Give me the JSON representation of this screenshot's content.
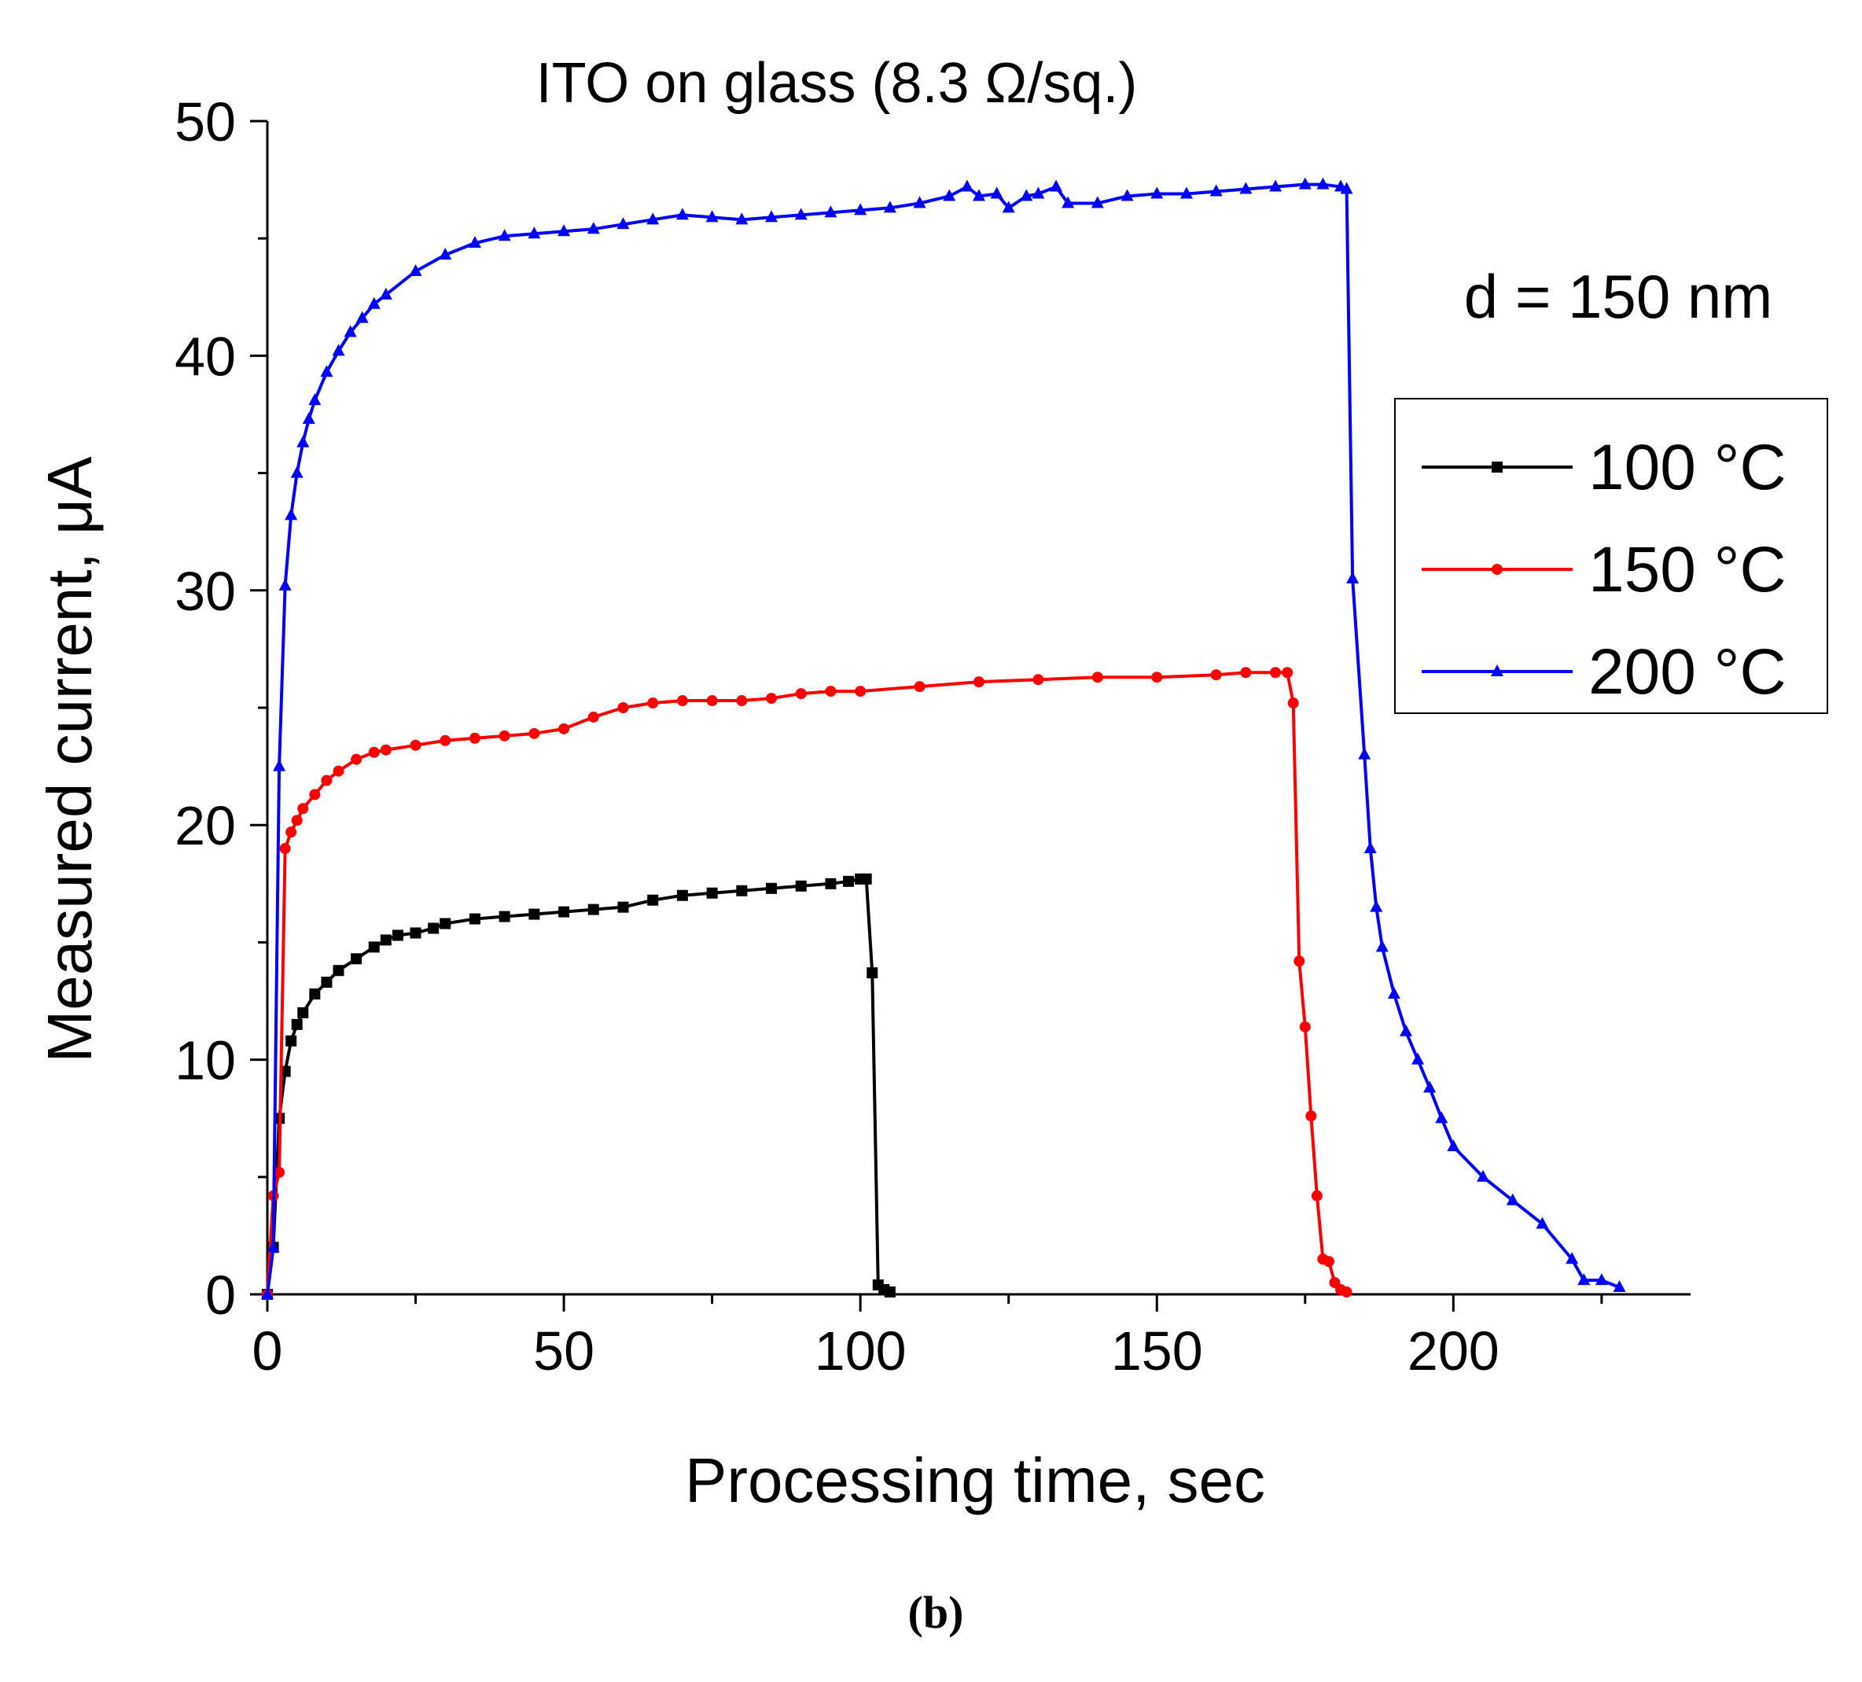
{
  "chart_data": {
    "type": "line",
    "title": "ITO on glass (8.3 Ω/sq.)",
    "annotation": "d = 150 nm",
    "panel_label": "(b)",
    "xlabel": "Processing time, sec",
    "ylabel": "Measured current, μA",
    "xlim": [
      0,
      240
    ],
    "ylim": [
      0,
      50
    ],
    "xticks": [
      0,
      50,
      100,
      150,
      200
    ],
    "yticks": [
      0,
      10,
      20,
      30,
      40,
      50
    ],
    "xtick_labels": [
      "0",
      "50",
      "100",
      "150",
      "200"
    ],
    "ytick_labels": [
      "0",
      "10",
      "20",
      "30",
      "40",
      "50"
    ],
    "legend_position": "right",
    "series": [
      {
        "name": "100 °C",
        "color": "#000000",
        "marker": "square",
        "x": [
          0,
          1,
          2,
          3,
          4,
          5,
          6,
          8,
          10,
          12,
          15,
          18,
          20,
          22,
          25,
          28,
          30,
          35,
          40,
          45,
          50,
          55,
          60,
          65,
          70,
          75,
          80,
          85,
          90,
          95,
          98,
          100,
          101,
          102,
          103,
          104,
          105
        ],
        "y": [
          0,
          2,
          7.5,
          9.5,
          10.8,
          11.5,
          12,
          12.8,
          13.3,
          13.8,
          14.3,
          14.8,
          15.1,
          15.3,
          15.4,
          15.6,
          15.8,
          16.0,
          16.1,
          16.2,
          16.3,
          16.4,
          16.5,
          16.8,
          17.0,
          17.1,
          17.2,
          17.3,
          17.4,
          17.5,
          17.6,
          17.7,
          17.7,
          13.7,
          0.4,
          0.2,
          0.1
        ]
      },
      {
        "name": "150 °C",
        "color": "#ff0000",
        "marker": "circle",
        "x": [
          0,
          1,
          2,
          3,
          4,
          5,
          6,
          8,
          10,
          12,
          15,
          18,
          20,
          25,
          30,
          35,
          40,
          45,
          50,
          55,
          60,
          65,
          70,
          75,
          80,
          85,
          90,
          95,
          100,
          110,
          120,
          130,
          140,
          150,
          160,
          165,
          170,
          172,
          173,
          174,
          175,
          176,
          177,
          178,
          179,
          180,
          181,
          182
        ],
        "y": [
          0,
          4.2,
          5.2,
          19,
          19.7,
          20.2,
          20.7,
          21.3,
          21.9,
          22.3,
          22.8,
          23.1,
          23.2,
          23.4,
          23.6,
          23.7,
          23.8,
          23.9,
          24.1,
          24.6,
          25.0,
          25.2,
          25.3,
          25.3,
          25.3,
          25.4,
          25.6,
          25.7,
          25.7,
          25.9,
          26.1,
          26.2,
          26.3,
          26.3,
          26.4,
          26.5,
          26.5,
          26.5,
          25.2,
          14.2,
          11.4,
          7.6,
          4.2,
          1.5,
          1.4,
          0.5,
          0.2,
          0.1
        ]
      },
      {
        "name": "200 °C",
        "color": "#0000ff",
        "marker": "triangle",
        "x": [
          0,
          1,
          2,
          3,
          4,
          5,
          6,
          7,
          8,
          10,
          12,
          14,
          16,
          18,
          20,
          25,
          30,
          35,
          40,
          45,
          50,
          55,
          60,
          65,
          70,
          75,
          80,
          85,
          90,
          95,
          100,
          105,
          110,
          115,
          118,
          120,
          123,
          125,
          128,
          130,
          133,
          135,
          140,
          145,
          150,
          155,
          160,
          165,
          170,
          175,
          178,
          181,
          182,
          183,
          185,
          186,
          187,
          188,
          190,
          192,
          194,
          196,
          198,
          200,
          205,
          210,
          215,
          220,
          222,
          225,
          228
        ],
        "y": [
          0,
          2,
          22.5,
          30.2,
          33.2,
          35.0,
          36.3,
          37.3,
          38.1,
          39.3,
          40.2,
          41.0,
          41.6,
          42.2,
          42.6,
          43.6,
          44.3,
          44.8,
          45.1,
          45.2,
          45.3,
          45.4,
          45.6,
          45.8,
          46.0,
          45.9,
          45.8,
          45.9,
          46.0,
          46.1,
          46.2,
          46.3,
          46.5,
          46.8,
          47.2,
          46.8,
          46.9,
          46.3,
          46.8,
          46.9,
          47.2,
          46.5,
          46.5,
          46.8,
          46.9,
          46.9,
          47.0,
          47.1,
          47.2,
          47.3,
          47.3,
          47.2,
          47.1,
          30.5,
          23.0,
          19.0,
          16.5,
          14.8,
          12.8,
          11.2,
          10.0,
          8.8,
          7.5,
          6.3,
          5.0,
          4.0,
          3.0,
          1.5,
          0.6,
          0.6,
          0.3
        ]
      }
    ]
  }
}
